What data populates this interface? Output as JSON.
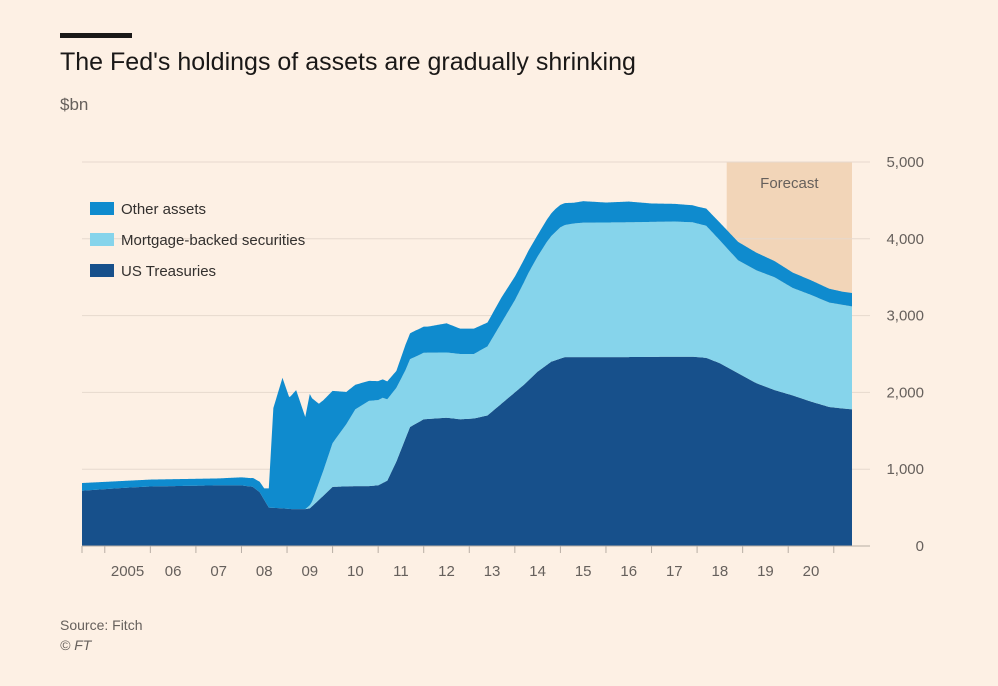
{
  "chart_data": {
    "type": "area",
    "title": "The Fed's holdings of assets are gradually shrinking",
    "subtitle": "$bn",
    "source": "Source: Fitch",
    "credit": "© FT",
    "stacked": true,
    "ylim": [
      0,
      5000
    ],
    "xlim": [
      2004.0,
      2020.9
    ],
    "y_ticks": [
      {
        "value": 0,
        "label": "0"
      },
      {
        "value": 1000,
        "label": "1,000"
      },
      {
        "value": 2000,
        "label": "2,000"
      },
      {
        "value": 3000,
        "label": "3,000"
      },
      {
        "value": 4000,
        "label": "4,000"
      },
      {
        "value": 5000,
        "label": "5,000"
      }
    ],
    "x_ticks": [
      {
        "value": 2005,
        "label": "2005"
      },
      {
        "value": 2006,
        "label": "06"
      },
      {
        "value": 2007,
        "label": "07"
      },
      {
        "value": 2008,
        "label": "08"
      },
      {
        "value": 2009,
        "label": "09"
      },
      {
        "value": 2010,
        "label": "10"
      },
      {
        "value": 2011,
        "label": "11"
      },
      {
        "value": 2012,
        "label": "12"
      },
      {
        "value": 2013,
        "label": "13"
      },
      {
        "value": 2014,
        "label": "14"
      },
      {
        "value": 2015,
        "label": "15"
      },
      {
        "value": 2016,
        "label": "16"
      },
      {
        "value": 2017,
        "label": "17"
      },
      {
        "value": 2018,
        "label": "18"
      },
      {
        "value": 2019,
        "label": "19"
      },
      {
        "value": 2020,
        "label": "20"
      }
    ],
    "forecast": {
      "label": "Forecast",
      "start": 2018.15,
      "end": 2020.9,
      "color": "#f2d5b8"
    },
    "grid": true,
    "legend_position": "top-left",
    "series": [
      {
        "name": "US Treasuries",
        "color": "#17508b",
        "points": [
          [
            2004.0,
            720
          ],
          [
            2004.5,
            740
          ],
          [
            2005.0,
            760
          ],
          [
            2005.5,
            775
          ],
          [
            2006.0,
            780
          ],
          [
            2006.5,
            785
          ],
          [
            2007.0,
            790
          ],
          [
            2007.5,
            790
          ],
          [
            2007.75,
            770
          ],
          [
            2007.9,
            700
          ],
          [
            2008.0,
            600
          ],
          [
            2008.1,
            500
          ],
          [
            2008.4,
            490
          ],
          [
            2008.6,
            480
          ],
          [
            2008.9,
            480
          ],
          [
            2009.0,
            490
          ],
          [
            2009.2,
            600
          ],
          [
            2009.5,
            770
          ],
          [
            2010.0,
            780
          ],
          [
            2010.3,
            780
          ],
          [
            2010.5,
            790
          ],
          [
            2010.7,
            850
          ],
          [
            2010.9,
            1100
          ],
          [
            2011.2,
            1550
          ],
          [
            2011.5,
            1650
          ],
          [
            2012.0,
            1670
          ],
          [
            2012.3,
            1650
          ],
          [
            2012.6,
            1660
          ],
          [
            2012.9,
            1700
          ],
          [
            2013.3,
            1900
          ],
          [
            2013.7,
            2100
          ],
          [
            2014.0,
            2270
          ],
          [
            2014.3,
            2400
          ],
          [
            2014.6,
            2460
          ],
          [
            2015.0,
            2460
          ],
          [
            2016.0,
            2460
          ],
          [
            2017.0,
            2465
          ],
          [
            2017.4,
            2465
          ],
          [
            2017.7,
            2450
          ],
          [
            2018.0,
            2380
          ],
          [
            2018.4,
            2250
          ],
          [
            2018.8,
            2120
          ],
          [
            2019.2,
            2030
          ],
          [
            2019.6,
            1960
          ],
          [
            2020.0,
            1880
          ],
          [
            2020.4,
            1810
          ],
          [
            2020.7,
            1790
          ],
          [
            2020.9,
            1780
          ]
        ]
      },
      {
        "name": "Mortgage-backed securities",
        "color": "#86d4eb",
        "points": [
          [
            2004.0,
            0
          ],
          [
            2008.9,
            0
          ],
          [
            2009.05,
            60
          ],
          [
            2009.3,
            330
          ],
          [
            2009.5,
            570
          ],
          [
            2009.8,
            810
          ],
          [
            2010.0,
            1000
          ],
          [
            2010.3,
            1110
          ],
          [
            2010.6,
            1110
          ],
          [
            2010.8,
            1010
          ],
          [
            2010.9,
            960
          ],
          [
            2011.1,
            890
          ],
          [
            2011.4,
            870
          ],
          [
            2011.7,
            860
          ],
          [
            2012.0,
            850
          ],
          [
            2012.3,
            850
          ],
          [
            2012.6,
            840
          ],
          [
            2012.9,
            900
          ],
          [
            2013.1,
            1000
          ],
          [
            2013.5,
            1200
          ],
          [
            2013.8,
            1400
          ],
          [
            2014.2,
            1600
          ],
          [
            2014.5,
            1710
          ],
          [
            2014.8,
            1740
          ],
          [
            2015.0,
            1750
          ],
          [
            2016.0,
            1755
          ],
          [
            2017.0,
            1760
          ],
          [
            2017.4,
            1750
          ],
          [
            2017.7,
            1720
          ],
          [
            2018.0,
            1600
          ],
          [
            2018.4,
            1470
          ],
          [
            2018.8,
            1470
          ],
          [
            2019.2,
            1470
          ],
          [
            2019.6,
            1400
          ],
          [
            2020.0,
            1390
          ],
          [
            2020.4,
            1360
          ],
          [
            2020.7,
            1350
          ],
          [
            2020.9,
            1340
          ]
        ]
      },
      {
        "name": "Other assets",
        "color": "#0f8bce",
        "points": [
          [
            2004.0,
            100
          ],
          [
            2005.0,
            90
          ],
          [
            2006.0,
            90
          ],
          [
            2007.0,
            90
          ],
          [
            2007.7,
            110
          ],
          [
            2008.0,
            150
          ],
          [
            2008.1,
            250
          ],
          [
            2008.2,
            1300
          ],
          [
            2008.4,
            1700
          ],
          [
            2008.55,
            1450
          ],
          [
            2008.7,
            1550
          ],
          [
            2008.9,
            1200
          ],
          [
            2009.0,
            1450
          ],
          [
            2009.2,
            1030
          ],
          [
            2009.5,
            680
          ],
          [
            2009.8,
            420
          ],
          [
            2010.0,
            320
          ],
          [
            2010.3,
            260
          ],
          [
            2010.6,
            240
          ],
          [
            2010.9,
            220
          ],
          [
            2011.1,
            330
          ],
          [
            2011.3,
            340
          ],
          [
            2011.6,
            340
          ],
          [
            2012.0,
            380
          ],
          [
            2012.3,
            330
          ],
          [
            2012.6,
            330
          ],
          [
            2012.9,
            310
          ],
          [
            2013.2,
            330
          ],
          [
            2013.6,
            300
          ],
          [
            2014.0,
            280
          ],
          [
            2014.4,
            300
          ],
          [
            2014.8,
            270
          ],
          [
            2015.0,
            280
          ],
          [
            2015.5,
            260
          ],
          [
            2016.0,
            270
          ],
          [
            2016.5,
            240
          ],
          [
            2017.0,
            230
          ],
          [
            2017.5,
            220
          ],
          [
            2018.0,
            230
          ],
          [
            2018.4,
            240
          ],
          [
            2018.8,
            230
          ],
          [
            2019.2,
            210
          ],
          [
            2019.6,
            200
          ],
          [
            2020.0,
            190
          ],
          [
            2020.4,
            180
          ],
          [
            2020.7,
            170
          ],
          [
            2020.9,
            175
          ]
        ]
      }
    ]
  }
}
